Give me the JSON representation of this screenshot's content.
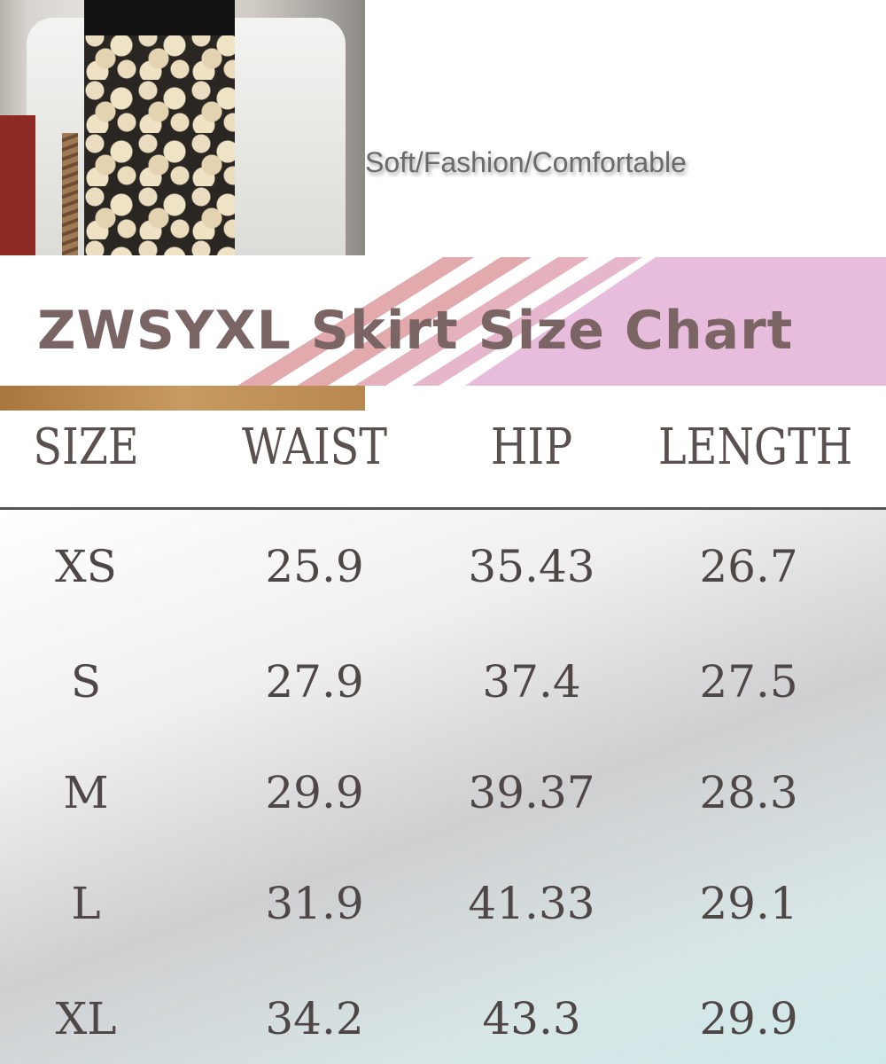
{
  "tagline": "Soft/Fashion/Comfortable",
  "title": "ZWSYXL Skirt Size Chart",
  "colors": {
    "title": "#7a6464",
    "stripe": "#e3aaae",
    "banner_pink": "#e8bcdc",
    "text": "#4f4747"
  },
  "table": {
    "headers": [
      "SIZE",
      "WAIST",
      "HIP",
      "LENGTH"
    ],
    "rows": [
      [
        "XS",
        "25.9",
        "35.43",
        "26.7"
      ],
      [
        "S",
        "27.9",
        "37.4",
        "27.5"
      ],
      [
        "M",
        "29.9",
        "39.37",
        "28.3"
      ],
      [
        "L",
        "31.9",
        "41.33",
        "29.1"
      ],
      [
        "XL",
        "34.2",
        "43.3",
        "29.9"
      ]
    ]
  }
}
